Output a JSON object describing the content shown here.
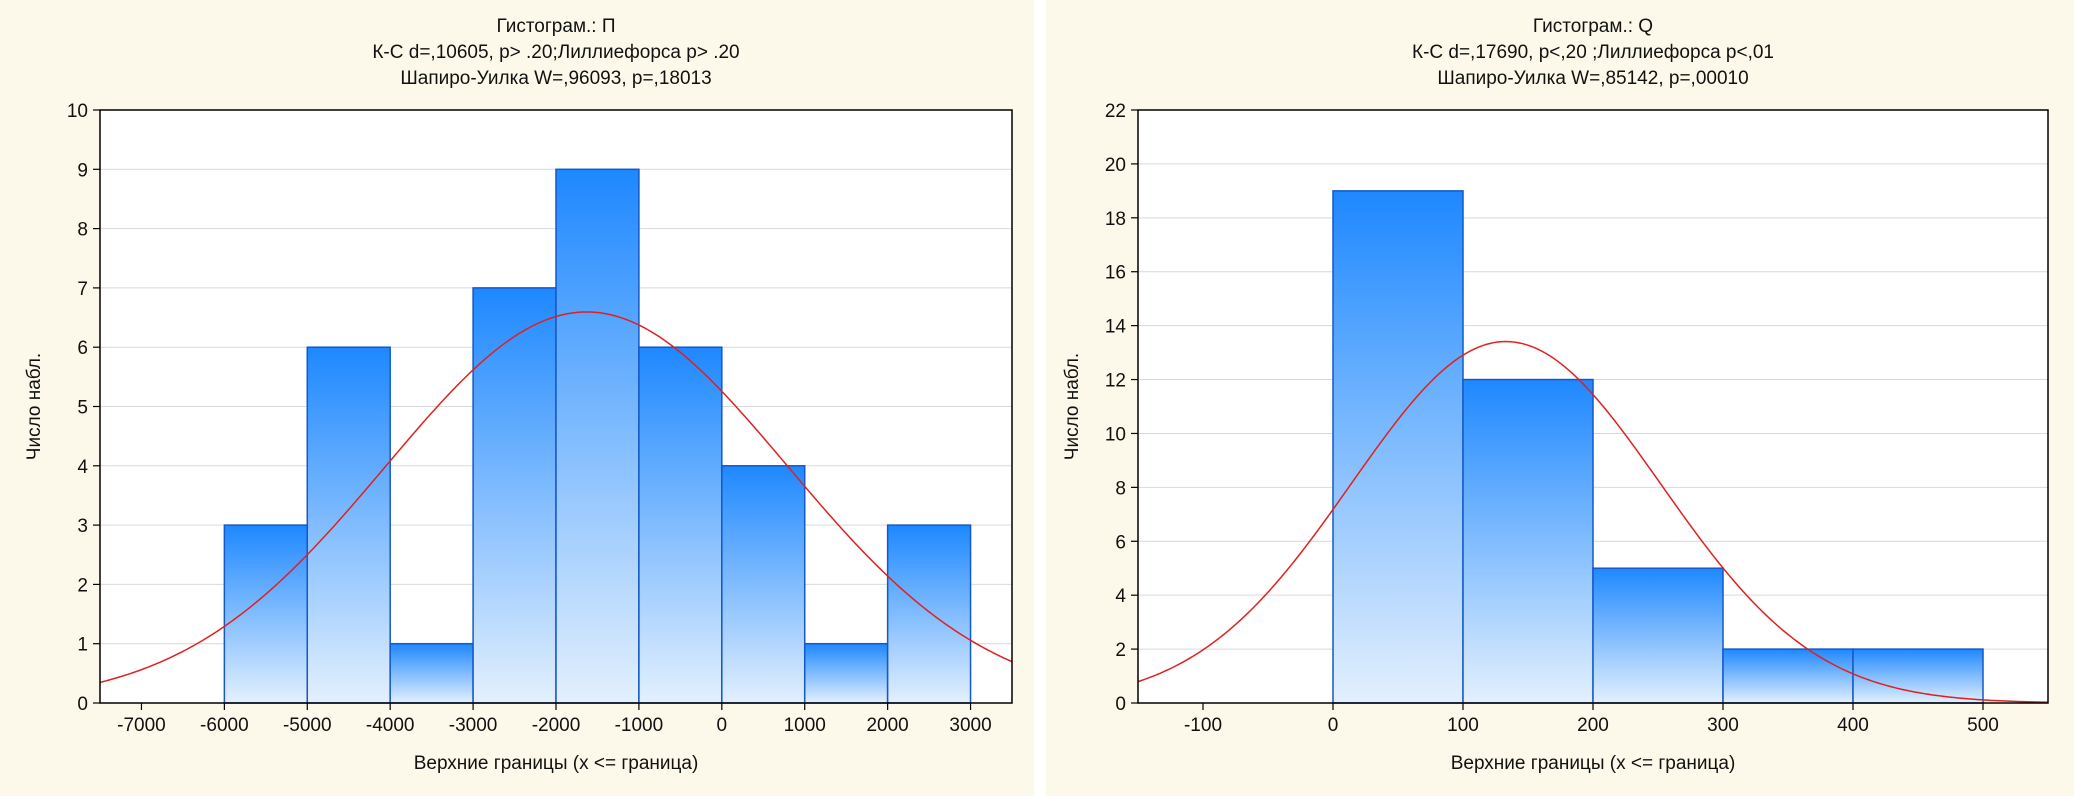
{
  "colors": {
    "panel_bg": "#fdf9ea",
    "plot_bg": "#ffffff",
    "grid": "#d9d9d9",
    "bar_top": "#1e88ff",
    "bar_bottom": "#e3f0fd",
    "bar_edge": "#1459c8",
    "curve": "#e02020",
    "axis": "#000000"
  },
  "chart_data": [
    {
      "type": "bar",
      "title": [
        "Гистограм.: П",
        "К-С d=,10605, p> .20;Лиллиефорса p> .20",
        "Шапиро-Уилка W=,96093, p=,18013"
      ],
      "xlabel": "Верхние границы (x <= граница)",
      "ylabel": "Число набл.",
      "xlim": [
        -7500,
        3500
      ],
      "ylim": [
        0,
        10
      ],
      "xticks": [
        -7000,
        -6000,
        -5000,
        -4000,
        -3000,
        -2000,
        -1000,
        0,
        1000,
        2000,
        3000
      ],
      "yticks": [
        0,
        1,
        2,
        3,
        4,
        5,
        6,
        7,
        8,
        9,
        10
      ],
      "bins": [
        {
          "from": -6000,
          "to": -5000,
          "value": 3
        },
        {
          "from": -5000,
          "to": -4000,
          "value": 6
        },
        {
          "from": -4000,
          "to": -3000,
          "value": 1
        },
        {
          "from": -3000,
          "to": -2000,
          "value": 7
        },
        {
          "from": -2000,
          "to": -1000,
          "value": 9
        },
        {
          "from": -1000,
          "to": 0,
          "value": 6
        },
        {
          "from": 0,
          "to": 1000,
          "value": 4
        },
        {
          "from": 1000,
          "to": 2000,
          "value": 1
        },
        {
          "from": 2000,
          "to": 3000,
          "value": 3
        }
      ],
      "normal_fit": {
        "mean": -1630,
        "sd": 2420,
        "n": 40,
        "bin_width": 1000
      }
    },
    {
      "type": "bar",
      "title": [
        "Гистограм.: Q",
        "К-С d=,17690, p<,20 ;Лиллиефорса p<,01",
        "Шапиро-Уилка W=,85142, p=,00010"
      ],
      "xlabel": "Верхние границы (x <= граница)",
      "ylabel": "Число набл.",
      "xlim": [
        -150,
        550
      ],
      "ylim": [
        0,
        22
      ],
      "xticks": [
        -100,
        0,
        100,
        200,
        300,
        400,
        500
      ],
      "yticks": [
        0,
        2,
        4,
        6,
        8,
        10,
        12,
        14,
        16,
        18,
        20,
        22
      ],
      "bins": [
        {
          "from": 0,
          "to": 100,
          "value": 19
        },
        {
          "from": 100,
          "to": 200,
          "value": 12
        },
        {
          "from": 200,
          "to": 300,
          "value": 5
        },
        {
          "from": 300,
          "to": 400,
          "value": 2
        },
        {
          "from": 400,
          "to": 500,
          "value": 2
        }
      ],
      "normal_fit": {
        "mean": 133,
        "sd": 119,
        "n": 40,
        "bin_width": 100
      }
    }
  ]
}
